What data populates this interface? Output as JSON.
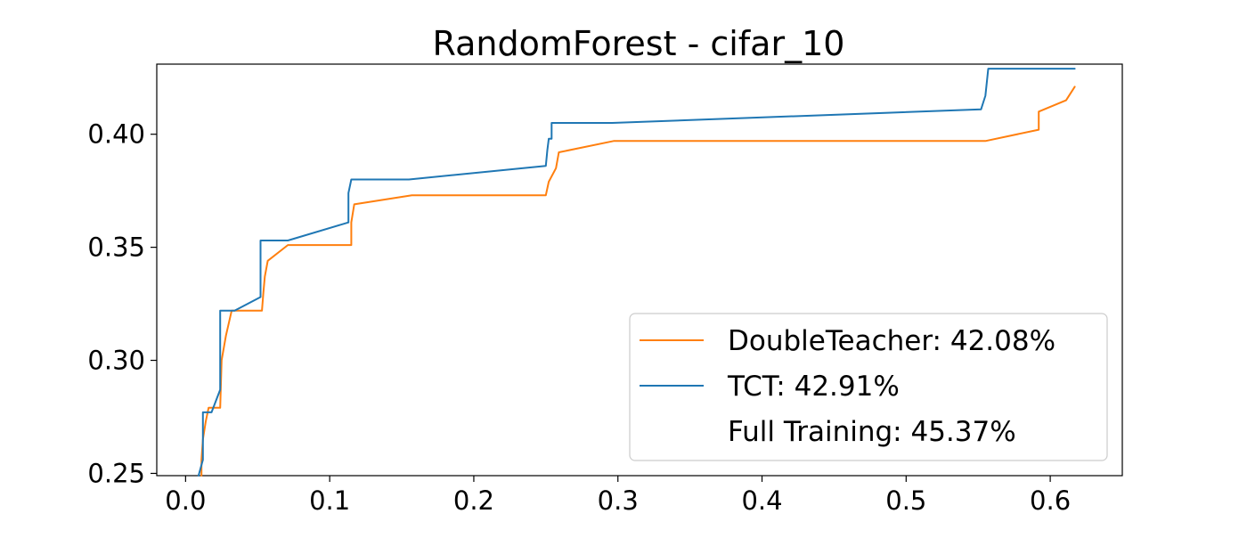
{
  "chart_data": {
    "type": "line",
    "title": "RandomForest - cifar_10",
    "xlabel": "",
    "ylabel": "",
    "xlim": [
      -0.02,
      0.65
    ],
    "ylim": [
      0.249,
      0.431
    ],
    "x_ticks": [
      0.0,
      0.1,
      0.2,
      0.3,
      0.4,
      0.5,
      0.6
    ],
    "x_tick_labels": [
      "0.0",
      "0.1",
      "0.2",
      "0.3",
      "0.4",
      "0.5",
      "0.6"
    ],
    "y_ticks": [
      0.25,
      0.3,
      0.35,
      0.4
    ],
    "y_tick_labels": [
      "0.25",
      "0.30",
      "0.35",
      "0.40"
    ],
    "grid": false,
    "legend_position": "lower-right",
    "series": [
      {
        "name": "DoubleTeacher: 42.08%",
        "color": "#ff7f0e",
        "points": [
          [
            0.011,
            0.249
          ],
          [
            0.011,
            0.256
          ],
          [
            0.012,
            0.265
          ],
          [
            0.014,
            0.273
          ],
          [
            0.016,
            0.279
          ],
          [
            0.024,
            0.279
          ],
          [
            0.025,
            0.3
          ],
          [
            0.028,
            0.311
          ],
          [
            0.032,
            0.322
          ],
          [
            0.053,
            0.322
          ],
          [
            0.054,
            0.33
          ],
          [
            0.055,
            0.337
          ],
          [
            0.057,
            0.344
          ],
          [
            0.071,
            0.351
          ],
          [
            0.115,
            0.351
          ],
          [
            0.115,
            0.361
          ],
          [
            0.117,
            0.369
          ],
          [
            0.157,
            0.373
          ],
          [
            0.25,
            0.373
          ],
          [
            0.252,
            0.379
          ],
          [
            0.257,
            0.385
          ],
          [
            0.259,
            0.392
          ],
          [
            0.297,
            0.397
          ],
          [
            0.555,
            0.397
          ],
          [
            0.592,
            0.402
          ],
          [
            0.592,
            0.41
          ],
          [
            0.611,
            0.415
          ],
          [
            0.617,
            0.421
          ]
        ]
      },
      {
        "name": "TCT: 42.91%",
        "color": "#1f77b4",
        "points": [
          [
            0.009,
            0.249
          ],
          [
            0.012,
            0.256
          ],
          [
            0.012,
            0.277
          ],
          [
            0.018,
            0.277
          ],
          [
            0.024,
            0.287
          ],
          [
            0.024,
            0.322
          ],
          [
            0.034,
            0.322
          ],
          [
            0.052,
            0.328
          ],
          [
            0.052,
            0.353
          ],
          [
            0.071,
            0.353
          ],
          [
            0.113,
            0.361
          ],
          [
            0.113,
            0.374
          ],
          [
            0.115,
            0.38
          ],
          [
            0.155,
            0.38
          ],
          [
            0.25,
            0.386
          ],
          [
            0.251,
            0.393
          ],
          [
            0.252,
            0.398
          ],
          [
            0.254,
            0.398
          ],
          [
            0.254,
            0.405
          ],
          [
            0.296,
            0.405
          ],
          [
            0.552,
            0.411
          ],
          [
            0.555,
            0.417
          ],
          [
            0.557,
            0.429
          ],
          [
            0.617,
            0.429
          ]
        ]
      }
    ],
    "legend": [
      {
        "label": "DoubleTeacher: 42.08%",
        "color": "#ff7f0e",
        "has_line": true
      },
      {
        "label": "TCT: 42.91%",
        "color": "#1f77b4",
        "has_line": true
      },
      {
        "label": "Full Training: 45.37%",
        "color": "#2ca02c",
        "has_line": false
      }
    ]
  }
}
